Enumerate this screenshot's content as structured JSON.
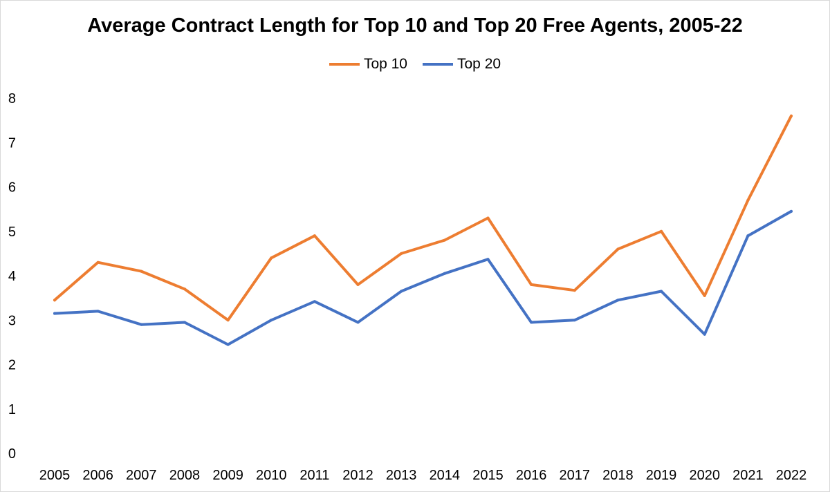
{
  "chart_data": {
    "type": "line",
    "title": "Average Contract Length for Top 10 and Top 20 Free Agents, 2005-22",
    "xlabel": "",
    "ylabel": "",
    "categories": [
      "2005",
      "2006",
      "2007",
      "2008",
      "2009",
      "2010",
      "2011",
      "2012",
      "2013",
      "2014",
      "2015",
      "2016",
      "2017",
      "2018",
      "2019",
      "2020",
      "2021",
      "2022"
    ],
    "series": [
      {
        "name": "Top 10",
        "color": "#ED7D31",
        "values": [
          3.45,
          4.3,
          4.1,
          3.7,
          3.0,
          4.4,
          4.9,
          3.8,
          4.5,
          4.8,
          5.3,
          3.8,
          3.67,
          4.6,
          5.0,
          3.55,
          5.7,
          7.6
        ]
      },
      {
        "name": "Top 20",
        "color": "#4472C4",
        "values": [
          3.15,
          3.2,
          2.9,
          2.95,
          2.45,
          3.0,
          3.42,
          2.95,
          3.65,
          4.05,
          4.37,
          2.95,
          3.0,
          3.45,
          3.65,
          2.68,
          4.9,
          5.45
        ]
      }
    ],
    "ylim": [
      0,
      8
    ],
    "yticks": [
      "0",
      "1",
      "2",
      "3",
      "4",
      "5",
      "6",
      "7",
      "8"
    ],
    "grid": false,
    "legend_position": "top-center"
  }
}
